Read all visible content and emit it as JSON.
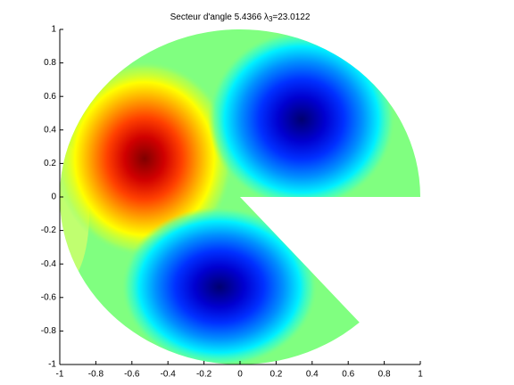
{
  "chart_data": {
    "type": "heatmap",
    "title": "Secteur d'angle 5.4366 λ",
    "title_subscript": "3",
    "title_suffix": "=23.0122",
    "xlim": [
      -1,
      1
    ],
    "ylim": [
      -1,
      1
    ],
    "xticks": [
      -1,
      -0.8,
      -0.6,
      -0.4,
      -0.2,
      0,
      0.2,
      0.4,
      0.6,
      0.8,
      1
    ],
    "yticks": [
      -1,
      -0.8,
      -0.6,
      -0.4,
      -0.2,
      0,
      0.2,
      0.4,
      0.6,
      0.8,
      1
    ]
  }
}
